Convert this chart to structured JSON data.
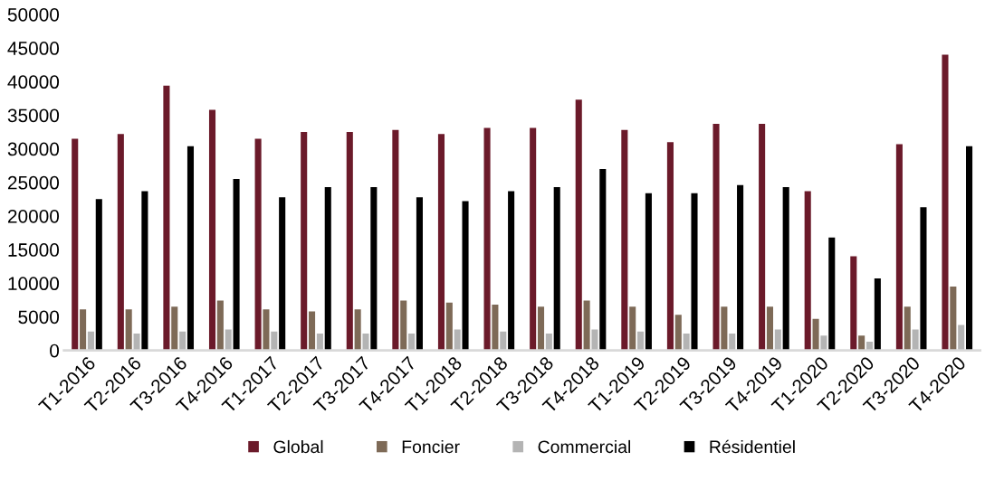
{
  "chart_data": {
    "type": "bar",
    "categories": [
      "T1-2016",
      "T2-2016",
      "T3-2016",
      "T4-2016",
      "T1-2017",
      "T2-2017",
      "T3-2017",
      "T4-2017",
      "T1-2018",
      "T2-2018",
      "T3-2018",
      "T4-2018",
      "T1-2019",
      "T2-2019",
      "T3-2019",
      "T4-2019",
      "T1-2020",
      "T2-2020",
      "T3-2020",
      "T4-2020"
    ],
    "series": [
      {
        "name": "Global",
        "color": "#6b1a2a",
        "values": [
          31500,
          32200,
          39400,
          35800,
          31500,
          32500,
          32500,
          32800,
          32200,
          33100,
          33100,
          37300,
          32800,
          31000,
          33700,
          33700,
          23700,
          14000,
          30700,
          44000
        ]
      },
      {
        "name": "Foncier",
        "color": "#7e6a57",
        "values": [
          6100,
          6100,
          6500,
          7400,
          6100,
          5800,
          6100,
          7400,
          7100,
          6800,
          6500,
          7400,
          6500,
          5300,
          6500,
          6500,
          4700,
          2200,
          6500,
          9500
        ]
      },
      {
        "name": "Commercial",
        "color": "#b4b4b4",
        "values": [
          2800,
          2500,
          2800,
          3100,
          2800,
          2500,
          2500,
          2500,
          3100,
          2800,
          2500,
          3100,
          2800,
          2500,
          2500,
          3100,
          2200,
          1300,
          3100,
          3800
        ]
      },
      {
        "name": "Résidentiel",
        "color": "#000000",
        "values": [
          22500,
          23700,
          30400,
          25500,
          22800,
          24300,
          24300,
          22800,
          22200,
          23700,
          24300,
          27000,
          23400,
          23400,
          24600,
          24300,
          16800,
          10700,
          21300,
          30400
        ]
      }
    ],
    "ylim": [
      0,
      50000
    ],
    "yticks": [
      0,
      5000,
      10000,
      15000,
      20000,
      25000,
      30000,
      35000,
      40000,
      45000,
      50000
    ],
    "grid": false,
    "legend": "bottom"
  }
}
